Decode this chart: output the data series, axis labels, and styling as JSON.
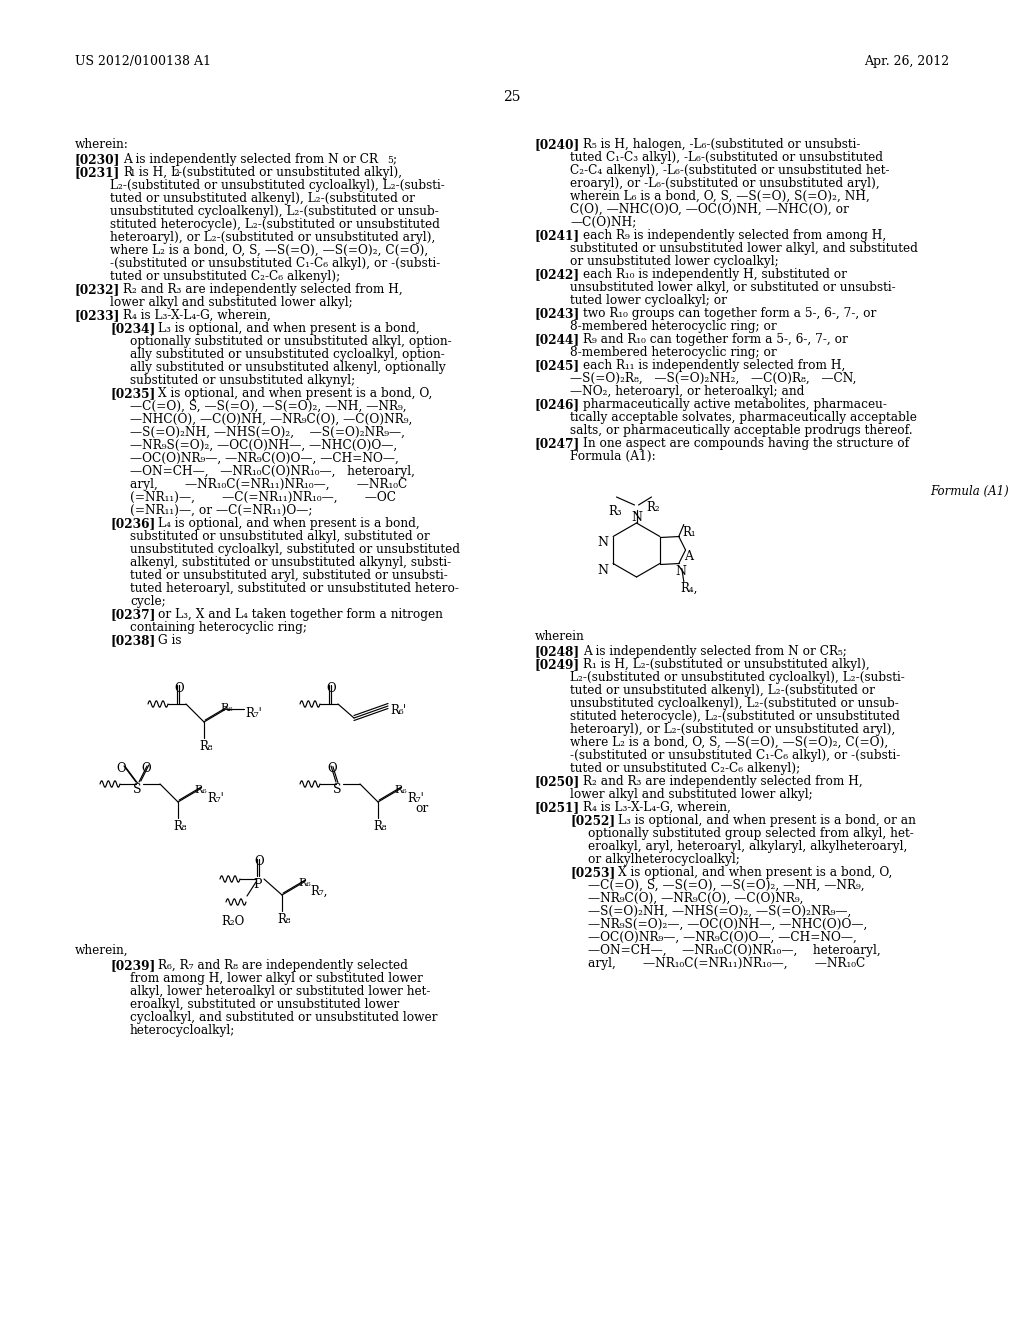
{
  "bg_color": "#ffffff",
  "header_left": "US 2012/0100138 A1",
  "header_right": "Apr. 26, 2012",
  "page_number": "25"
}
